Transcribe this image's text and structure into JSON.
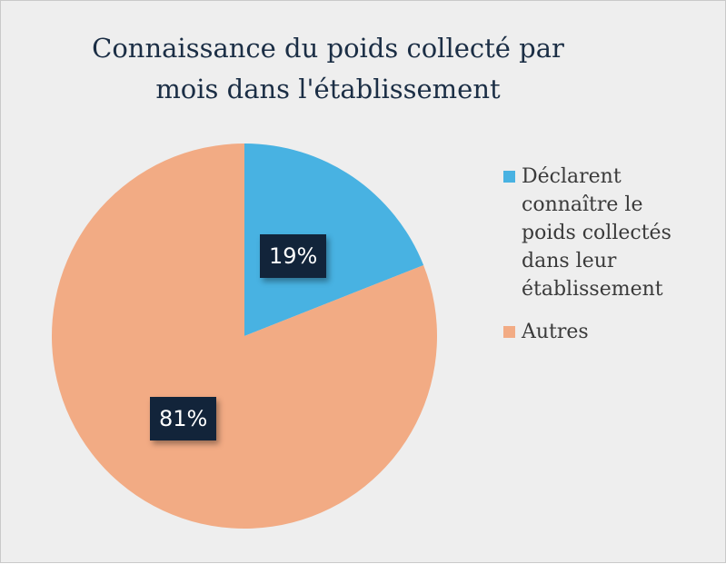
{
  "chart_data": {
    "type": "pie",
    "title": "Connaissance du poids collecté par mois dans l'établissement",
    "title_lines": [
      "Connaissance du poids collecté par",
      "mois dans l'établissement"
    ],
    "categories": [
      "Déclarent connaître le poids collectés dans leur établissement",
      "Autres"
    ],
    "values": [
      19,
      81
    ],
    "data_labels": [
      "19%",
      "81%"
    ],
    "colors": [
      "#48b2e2",
      "#f2ab84"
    ],
    "legend": {
      "position": "right",
      "entries": [
        {
          "lines": [
            "Déclarent",
            "connaître le",
            "poids collectés",
            "dans leur",
            "établissement"
          ]
        },
        {
          "lines": [
            "Autres"
          ]
        }
      ]
    }
  }
}
